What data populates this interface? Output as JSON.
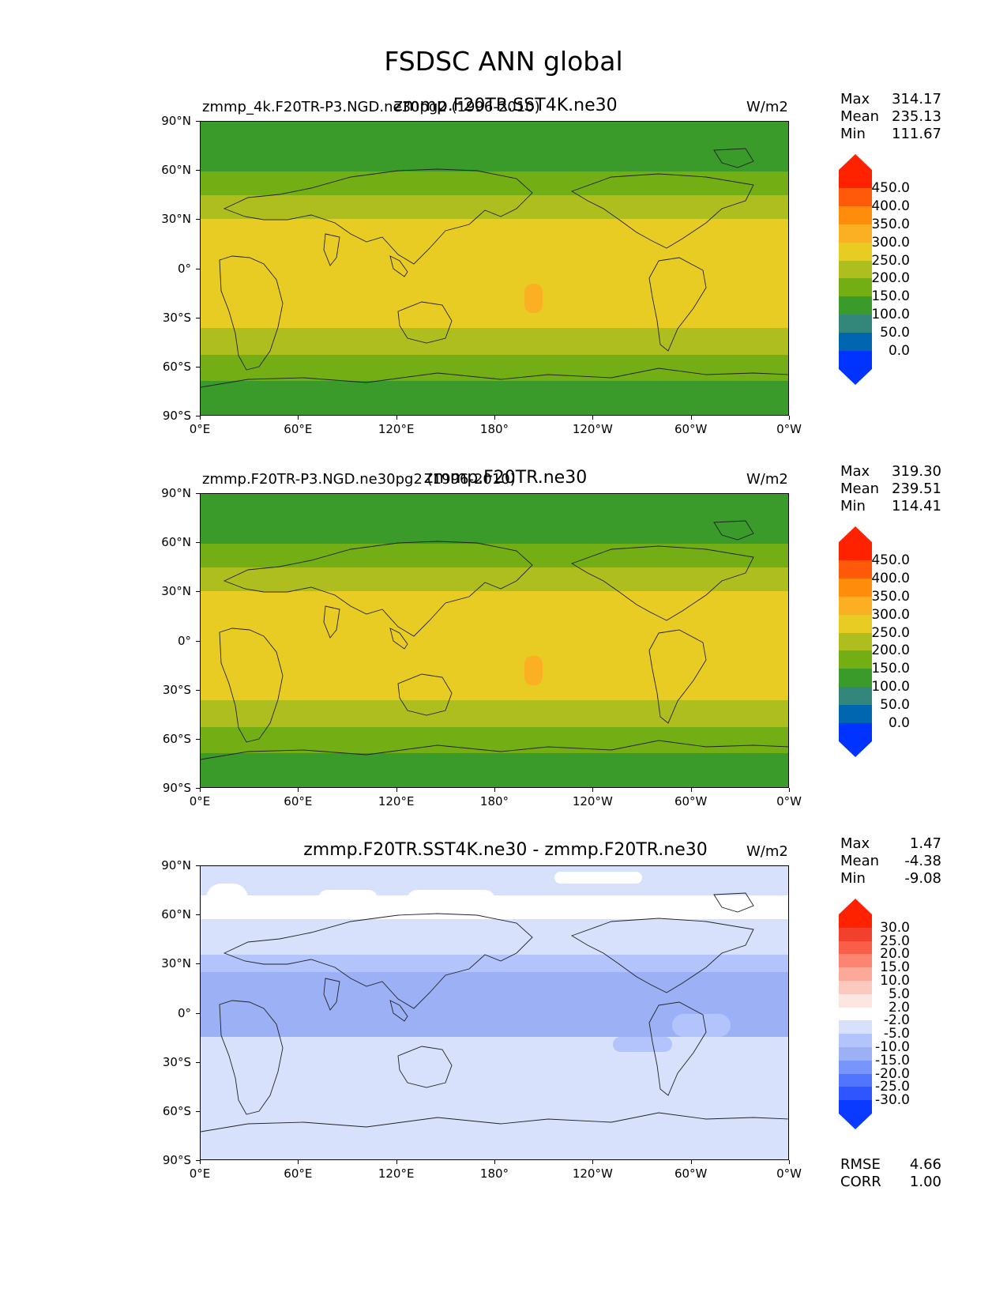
{
  "title": "FSDSC ANN global",
  "units": "W/m2",
  "lat_ticks": [
    "90°N",
    "60°N",
    "30°N",
    "0°",
    "30°S",
    "60°S",
    "90°S"
  ],
  "lon_ticks": [
    "0°E",
    "60°E",
    "120°E",
    "180°",
    "120°W",
    "60°W",
    "0°W"
  ],
  "colors": {
    "field": [
      "#0033ff",
      "#0066b0",
      "#33877a",
      "#3a9a2a",
      "#74ae15",
      "#aebe1f",
      "#e9cc23",
      "#fbb024",
      "#ff8c0a",
      "#ff5a0a",
      "#ff2200"
    ],
    "diff": [
      "#0a3aff",
      "#2e55ff",
      "#5275ff",
      "#7795fb",
      "#9bb0f5",
      "#b3c3fc",
      "#d8e1fb",
      "#ffffff",
      "#fde5e0",
      "#fcc9bf",
      "#fca99a",
      "#fb8570",
      "#f85e48",
      "#f2402e",
      "#ff2200"
    ]
  },
  "panels": [
    {
      "label": "zmmp_4k.F20TR-P3.NGD.ne30pg2 (1996-2010)",
      "case": "zmmp.F20TR.SST4K.ne30",
      "units": "W/m2",
      "stats": [
        {
          "name": "Max",
          "value": "314.17"
        },
        {
          "name": "Mean",
          "value": "235.13"
        },
        {
          "name": "Min",
          "value": "111.67"
        }
      ],
      "levels": [
        "450.0",
        "400.0",
        "350.0",
        "300.0",
        "250.0",
        "200.0",
        "150.0",
        "100.0",
        "50.0",
        "0.0"
      ]
    },
    {
      "label": "zmmp.F20TR-P3.NGD.ne30pg2 (1996-2010)",
      "case": "zmmp.F20TR.ne30",
      "units": "W/m2",
      "stats": [
        {
          "name": "Max",
          "value": "319.30"
        },
        {
          "name": "Mean",
          "value": "239.51"
        },
        {
          "name": "Min",
          "value": "114.41"
        }
      ],
      "levels": [
        "450.0",
        "400.0",
        "350.0",
        "300.0",
        "250.0",
        "200.0",
        "150.0",
        "100.0",
        "50.0",
        "0.0"
      ]
    },
    {
      "label": "",
      "case": "zmmp.F20TR.SST4K.ne30 - zmmp.F20TR.ne30",
      "units": "W/m2",
      "stats": [
        {
          "name": "Max",
          "value": "1.47"
        },
        {
          "name": "Mean",
          "value": "-4.38"
        },
        {
          "name": "Min",
          "value": "-9.08"
        }
      ],
      "levels": [
        "30.0",
        "25.0",
        "20.0",
        "15.0",
        "10.0",
        "5.0",
        "2.0",
        "-2.0",
        "-5.0",
        "-10.0",
        "-15.0",
        "-20.0",
        "-25.0",
        "-30.0"
      ],
      "metrics": [
        {
          "name": "RMSE",
          "value": "4.66"
        },
        {
          "name": "CORR",
          "value": "1.00"
        }
      ]
    }
  ]
}
